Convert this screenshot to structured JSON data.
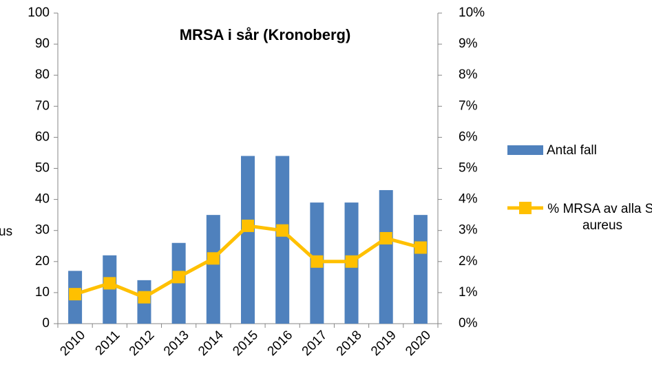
{
  "chart_data": {
    "type": "bar_line",
    "title": "MRSA i sår (Kronoberg)",
    "categories": [
      "2010",
      "2011",
      "2012",
      "2013",
      "2014",
      "2015",
      "2016",
      "2017",
      "2018",
      "2019",
      "2020"
    ],
    "series": [
      {
        "name": "Antal fall",
        "color": "#4f81bd",
        "type": "bar",
        "values": [
          17,
          22,
          14,
          26,
          35,
          54,
          54,
          39,
          39,
          43,
          35
        ]
      },
      {
        "name": "% MRSA av alla S. aureus",
        "color": "#ffc000",
        "type": "line",
        "axis": "y2",
        "values": [
          0.95,
          1.3,
          0.85,
          1.5,
          2.1,
          3.15,
          3.0,
          2.0,
          2.0,
          2.75,
          2.45
        ]
      }
    ],
    "ylim": [
      0,
      100
    ],
    "yticks": [
      0,
      10,
      20,
      30,
      40,
      50,
      60,
      70,
      80,
      90,
      100
    ],
    "y2lim": [
      0,
      10
    ],
    "y2ticks": [
      {
        "value": 0,
        "label": "0%"
      },
      {
        "value": 1,
        "label": "1%"
      },
      {
        "value": 2,
        "label": "2%"
      },
      {
        "value": 3,
        "label": "3%"
      },
      {
        "value": 4,
        "label": "4%"
      },
      {
        "value": 5,
        "label": "5%"
      },
      {
        "value": 6,
        "label": "6%"
      },
      {
        "value": 7,
        "label": "7%"
      },
      {
        "value": 8,
        "label": "8%"
      },
      {
        "value": 9,
        "label": "9%"
      },
      {
        "value": 10,
        "label": "10%"
      }
    ],
    "annotations": [
      "us"
    ],
    "legend": "right"
  }
}
